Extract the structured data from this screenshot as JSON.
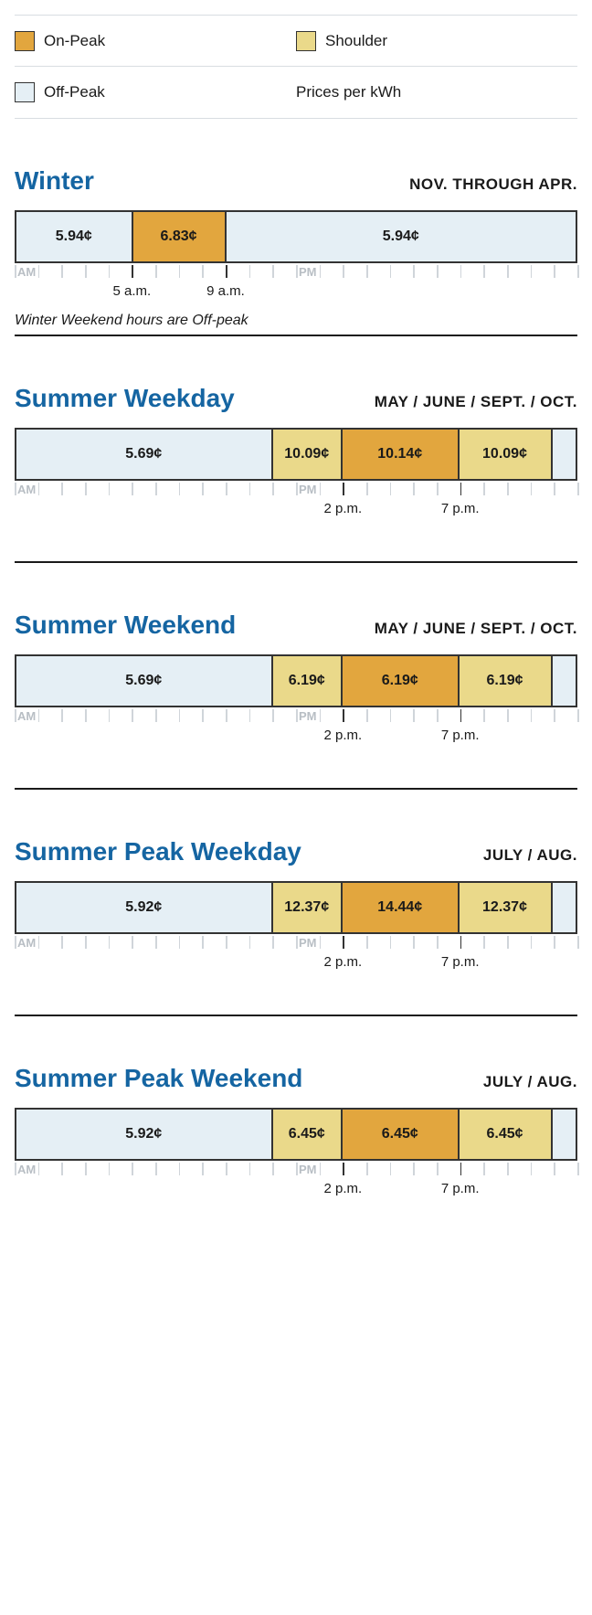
{
  "colors": {
    "onpeak": "#e2a63e",
    "shoulder": "#ead98a",
    "offpeak": "#e5eff5",
    "title": "#1565a2",
    "border": "#333333",
    "tick": "#d0d5da"
  },
  "legend": {
    "onpeak": "On-Peak",
    "shoulder": "Shoulder",
    "offpeak": "Off-Peak",
    "unit": "Prices per kWh"
  },
  "axis": {
    "am": "AM",
    "pm": "PM"
  },
  "sections": [
    {
      "id": "winter",
      "title": "Winter",
      "months": "NOV. THROUGH APR.",
      "segments": [
        {
          "type": "offpeak",
          "hours": 5,
          "price": "5.94¢"
        },
        {
          "type": "onpeak",
          "hours": 4,
          "price": "6.83¢"
        },
        {
          "type": "offpeak",
          "hours": 15,
          "price": "5.94¢"
        }
      ],
      "majorTicks": [
        5,
        9
      ],
      "tickLabels": [
        {
          "hour": 5,
          "text": "5 a.m."
        },
        {
          "hour": 9,
          "text": "9 a.m."
        }
      ],
      "note": "Winter Weekend hours are Off-peak",
      "dividerAfter": false
    },
    {
      "id": "summer-weekday",
      "title": "Summer Weekday",
      "months": "MAY / JUNE / SEPT. / OCT.",
      "segments": [
        {
          "type": "offpeak",
          "hours": 11,
          "price": "5.69¢"
        },
        {
          "type": "shoulder",
          "hours": 3,
          "price": "10.09¢"
        },
        {
          "type": "onpeak",
          "hours": 5,
          "price": "10.14¢"
        },
        {
          "type": "shoulder",
          "hours": 4,
          "price": "10.09¢"
        },
        {
          "type": "offpeak",
          "hours": 1,
          "price": ""
        }
      ],
      "majorTicks": [
        14,
        19
      ],
      "tickLabels": [
        {
          "hour": 14,
          "text": "2 p.m."
        },
        {
          "hour": 19,
          "text": "7 p.m."
        }
      ],
      "dividerAfter": true
    },
    {
      "id": "summer-weekend",
      "title": "Summer Weekend",
      "months": "MAY / JUNE / SEPT. / OCT.",
      "segments": [
        {
          "type": "offpeak",
          "hours": 11,
          "price": "5.69¢"
        },
        {
          "type": "shoulder",
          "hours": 3,
          "price": "6.19¢"
        },
        {
          "type": "onpeak",
          "hours": 5,
          "price": "6.19¢"
        },
        {
          "type": "shoulder",
          "hours": 4,
          "price": "6.19¢"
        },
        {
          "type": "offpeak",
          "hours": 1,
          "price": ""
        }
      ],
      "majorTicks": [
        14,
        19
      ],
      "tickLabels": [
        {
          "hour": 14,
          "text": "2 p.m."
        },
        {
          "hour": 19,
          "text": "7 p.m."
        }
      ],
      "dividerAfter": true
    },
    {
      "id": "summer-peak-weekday",
      "title": "Summer Peak Weekday",
      "months": "JULY / AUG.",
      "segments": [
        {
          "type": "offpeak",
          "hours": 11,
          "price": "5.92¢"
        },
        {
          "type": "shoulder",
          "hours": 3,
          "price": "12.37¢"
        },
        {
          "type": "onpeak",
          "hours": 5,
          "price": "14.44¢"
        },
        {
          "type": "shoulder",
          "hours": 4,
          "price": "12.37¢"
        },
        {
          "type": "offpeak",
          "hours": 1,
          "price": ""
        }
      ],
      "majorTicks": [
        14,
        19
      ],
      "tickLabels": [
        {
          "hour": 14,
          "text": "2 p.m."
        },
        {
          "hour": 19,
          "text": "7 p.m."
        }
      ],
      "dividerAfter": true
    },
    {
      "id": "summer-peak-weekend",
      "title": "Summer Peak Weekend",
      "months": "JULY / AUG.",
      "segments": [
        {
          "type": "offpeak",
          "hours": 11,
          "price": "5.92¢"
        },
        {
          "type": "shoulder",
          "hours": 3,
          "price": "6.45¢"
        },
        {
          "type": "onpeak",
          "hours": 5,
          "price": "6.45¢"
        },
        {
          "type": "shoulder",
          "hours": 4,
          "price": "6.45¢"
        },
        {
          "type": "offpeak",
          "hours": 1,
          "price": ""
        }
      ],
      "majorTicks": [
        14,
        19
      ],
      "tickLabels": [
        {
          "hour": 14,
          "text": "2 p.m."
        },
        {
          "hour": 19,
          "text": "7 p.m."
        }
      ],
      "dividerAfter": false
    }
  ]
}
